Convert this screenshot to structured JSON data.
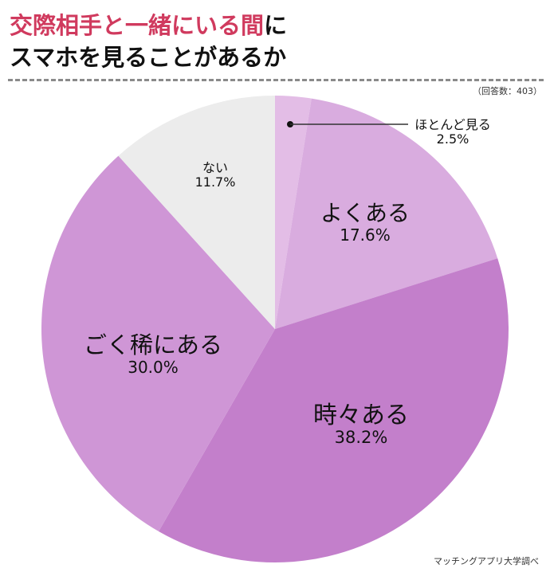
{
  "header": {
    "title_line1_accent": "交際相手と一緒にいる間",
    "title_line1_plain": "に",
    "title_line2": "スマホを見ることがあるか",
    "respondents": "（回答数：403）"
  },
  "footer": {
    "source": "マッチングアプリ大学調べ"
  },
  "chart_data": {
    "type": "pie",
    "title": "交際相手と一緒にいる間にスマホを見ることがあるか",
    "note": "（回答数：403）",
    "source": "マッチングアプリ大学調べ",
    "start_angle_deg": 0,
    "direction": "clockwise",
    "categories": [
      "ほとんど見る",
      "よくある",
      "時々ある",
      "ごく稀にある",
      "ない"
    ],
    "values": [
      2.5,
      17.6,
      38.2,
      30.0,
      11.7
    ],
    "labels": [
      "2.5%",
      "17.6%",
      "38.2%",
      "30.0%",
      "11.7%"
    ],
    "colors": [
      "#e3bde6",
      "#d9acdf",
      "#c37fcb",
      "#cf96d6",
      "#ececec"
    ],
    "legend": "none (labels inside slices)"
  }
}
